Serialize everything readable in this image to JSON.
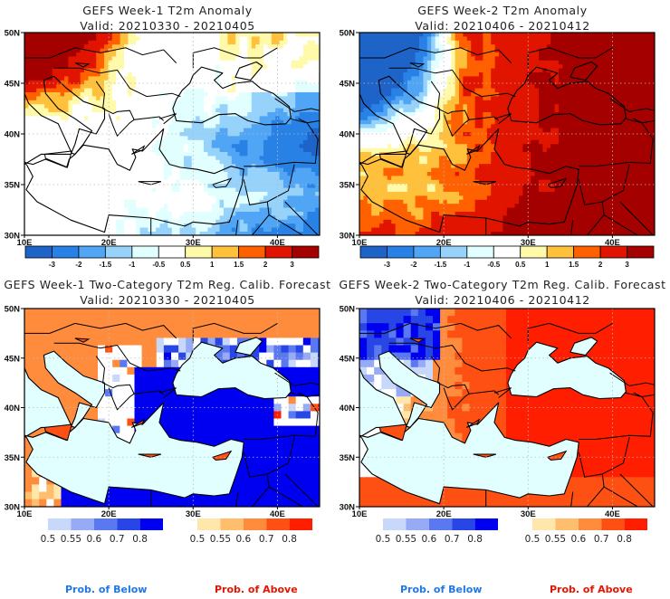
{
  "panels": [
    {
      "id": "w1-anom",
      "title": "GEFS Week-1 T2m Anomaly",
      "valid": "Valid: 20210330 - 20210405",
      "kind": "anomaly",
      "dominant": "cold-east-warm-northwest"
    },
    {
      "id": "w2-anom",
      "title": "GEFS Week-2 T2m Anomaly",
      "valid": "Valid: 20210406 - 20210412",
      "kind": "anomaly",
      "dominant": "warm-east-cold-northwest"
    },
    {
      "id": "w1-prob",
      "title": "GEFS Week-1 Two-Category T2m Reg. Calib. Forecast",
      "valid": "Valid: 20210330 - 20210405",
      "kind": "probability",
      "dominant": "below-east-above-west"
    },
    {
      "id": "w2-prob",
      "title": "GEFS Week-2 Two-Category T2m Reg. Calib. Forecast",
      "valid": "Valid: 20210406 - 20210412",
      "kind": "probability",
      "dominant": "above-east-below-northwest"
    }
  ],
  "axes": {
    "lat_labels": [
      "50N",
      "45N",
      "40N",
      "35N",
      "30N"
    ],
    "lon_labels": [
      "10E",
      "20E",
      "30E",
      "40E"
    ]
  },
  "anomaly_colorbar": {
    "labels": [
      "-3",
      "-2",
      "-1.5",
      "-1",
      "-0.5",
      "0.5",
      "1",
      "1.5",
      "2",
      "3"
    ],
    "colors": [
      "#1e64c8",
      "#2882e6",
      "#50a5f5",
      "#96d2fa",
      "#e1ffff",
      "#ffffff",
      "#fffaaa",
      "#ffc03c",
      "#ff6000",
      "#e11400",
      "#a50000"
    ]
  },
  "prob_below_colorbar": {
    "labels": [
      "0.5",
      "0.55",
      "0.6",
      "0.7",
      "0.8"
    ],
    "colors": [
      "#c8d8fa",
      "#96aaf5",
      "#5a78f0",
      "#2846e6",
      "#0000f0"
    ]
  },
  "prob_above_colorbar": {
    "labels": [
      "0.5",
      "0.55",
      "0.6",
      "0.7",
      "0.8"
    ],
    "colors": [
      "#ffe6aa",
      "#ffbe6e",
      "#ff8c3c",
      "#ff5014",
      "#ff1e00"
    ]
  },
  "legend": {
    "below_label": "Prob. of Below",
    "above_label": "Prob. of Above",
    "below_color": "#1e78e6",
    "above_color": "#e61400"
  },
  "sea_color": "#e1ffff"
}
